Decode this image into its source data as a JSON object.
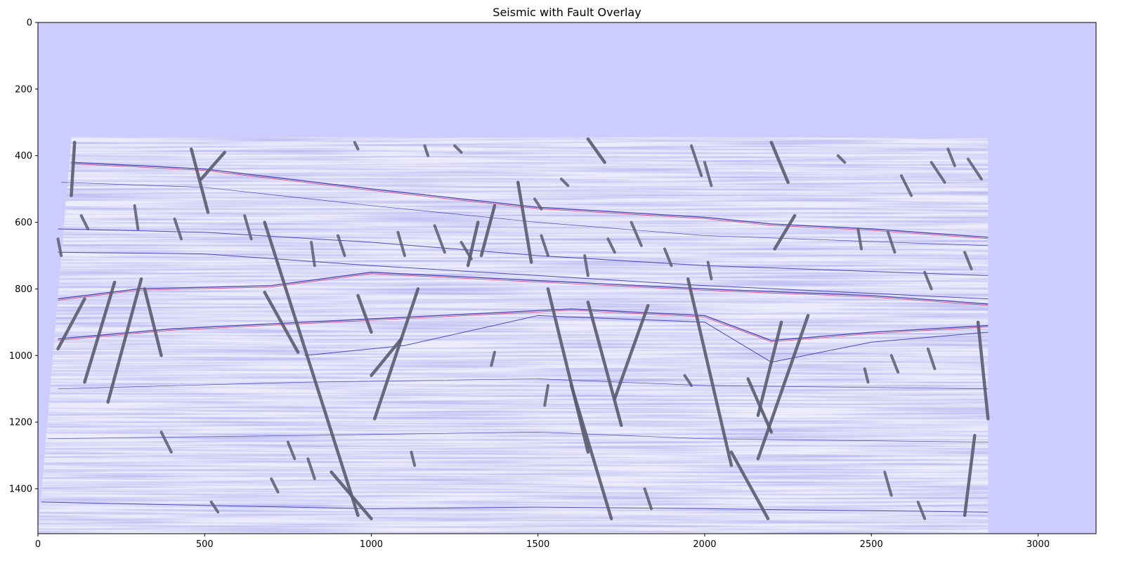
{
  "chart_data": {
    "type": "heatmap",
    "title": "Seismic with Fault Overlay",
    "xlabel": "",
    "ylabel": "",
    "xlim": [
      0,
      3174
    ],
    "ylim": [
      1535,
      0
    ],
    "y_inverted": true,
    "grid": false,
    "legend": "none",
    "x_ticks": [
      "0",
      "500",
      "1000",
      "1500",
      "2000",
      "2500",
      "3000"
    ],
    "y_ticks": [
      "0",
      "200",
      "400",
      "600",
      "800",
      "1000",
      "1200",
      "1400"
    ],
    "x_tick_values": [
      0,
      500,
      1000,
      1500,
      2000,
      2500,
      3000
    ],
    "y_tick_values": [
      0,
      200,
      400,
      600,
      800,
      1000,
      1200,
      1400
    ],
    "colors": {
      "background": "#ccccff",
      "seismic_base": "#ececfb",
      "seismic_negative": "#3a3ab8",
      "seismic_positive": "#ffffff",
      "seismic_strong": "#d4204a",
      "fault": "#5c5c70"
    },
    "data_extent": {
      "x_left_top": [
        100,
        345
      ],
      "x_right_top": [
        2850,
        345
      ],
      "x_left_bottom": [
        0,
        1535
      ],
      "x_right_bottom": [
        2850,
        1535
      ]
    },
    "horizons": [
      {
        "name": "",
        "points": [
          [
            100,
            420
          ],
          [
            500,
            440
          ],
          [
            1000,
            500
          ],
          [
            1500,
            555
          ],
          [
            2000,
            585
          ],
          [
            2200,
            605
          ],
          [
            2500,
            620
          ],
          [
            2850,
            645
          ]
        ],
        "strength": "strong"
      },
      {
        "name": "",
        "points": [
          [
            70,
            480
          ],
          [
            500,
            495
          ],
          [
            1000,
            550
          ],
          [
            1500,
            600
          ],
          [
            2000,
            640
          ],
          [
            2850,
            670
          ]
        ],
        "strength": "weak"
      },
      {
        "name": "",
        "points": [
          [
            60,
            620
          ],
          [
            500,
            630
          ],
          [
            1000,
            660
          ],
          [
            1500,
            700
          ],
          [
            2000,
            730
          ],
          [
            2850,
            760
          ]
        ],
        "strength": "medium"
      },
      {
        "name": "",
        "points": [
          [
            60,
            690
          ],
          [
            500,
            695
          ],
          [
            1000,
            730
          ],
          [
            1500,
            760
          ],
          [
            2000,
            790
          ],
          [
            2850,
            830
          ]
        ],
        "strength": "medium"
      },
      {
        "name": "",
        "points": [
          [
            60,
            830
          ],
          [
            300,
            800
          ],
          [
            700,
            790
          ],
          [
            1000,
            750
          ],
          [
            1500,
            775
          ],
          [
            2000,
            800
          ],
          [
            2500,
            820
          ],
          [
            2850,
            845
          ]
        ],
        "strength": "strong"
      },
      {
        "name": "",
        "points": [
          [
            60,
            950
          ],
          [
            400,
            920
          ],
          [
            800,
            900
          ],
          [
            1200,
            880
          ],
          [
            1600,
            860
          ],
          [
            2000,
            880
          ],
          [
            2200,
            955
          ],
          [
            2500,
            930
          ],
          [
            2850,
            910
          ]
        ],
        "strength": "strong"
      },
      {
        "name": "",
        "points": [
          [
            800,
            1000
          ],
          [
            1100,
            970
          ],
          [
            1500,
            880
          ],
          [
            2000,
            900
          ],
          [
            2200,
            1020
          ],
          [
            2500,
            960
          ],
          [
            2850,
            930
          ]
        ],
        "strength": "medium"
      },
      {
        "name": "",
        "points": [
          [
            60,
            1100
          ],
          [
            800,
            1080
          ],
          [
            1500,
            1070
          ],
          [
            2000,
            1090
          ],
          [
            2850,
            1100
          ]
        ],
        "strength": "weak"
      },
      {
        "name": "",
        "points": [
          [
            30,
            1250
          ],
          [
            800,
            1240
          ],
          [
            1500,
            1230
          ],
          [
            2000,
            1250
          ],
          [
            2850,
            1260
          ]
        ],
        "strength": "weak"
      },
      {
        "name": "",
        "points": [
          [
            10,
            1440
          ],
          [
            500,
            1450
          ],
          [
            1000,
            1460
          ],
          [
            1500,
            1455
          ],
          [
            2000,
            1460
          ],
          [
            2850,
            1470
          ]
        ],
        "strength": "medium"
      }
    ],
    "faults_long": [
      [
        [
          110,
          360
        ],
        [
          100,
          520
        ]
      ],
      [
        [
          140,
          830
        ],
        [
          60,
          980
        ]
      ],
      [
        [
          230,
          780
        ],
        [
          140,
          1080
        ]
      ],
      [
        [
          310,
          770
        ],
        [
          210,
          1140
        ]
      ],
      [
        [
          320,
          800
        ],
        [
          370,
          1000
        ]
      ],
      [
        [
          460,
          380
        ],
        [
          510,
          570
        ]
      ],
      [
        [
          560,
          390
        ],
        [
          490,
          470
        ]
      ],
      [
        [
          680,
          600
        ],
        [
          960,
          1480
        ]
      ],
      [
        [
          680,
          810
        ],
        [
          780,
          990
        ]
      ],
      [
        [
          880,
          1350
        ],
        [
          1000,
          1490
        ]
      ],
      [
        [
          1140,
          800
        ],
        [
          1010,
          1190
        ]
      ],
      [
        [
          960,
          820
        ],
        [
          1000,
          930
        ]
      ],
      [
        [
          1370,
          550
        ],
        [
          1330,
          700
        ]
      ],
      [
        [
          1320,
          600
        ],
        [
          1290,
          730
        ]
      ],
      [
        [
          1530,
          800
        ],
        [
          1650,
          1290
        ]
      ],
      [
        [
          1650,
          840
        ],
        [
          1750,
          1210
        ]
      ],
      [
        [
          1830,
          850
        ],
        [
          1730,
          1130
        ]
      ],
      [
        [
          1600,
          1090
        ],
        [
          1720,
          1490
        ]
      ],
      [
        [
          1950,
          770
        ],
        [
          2080,
          1330
        ]
      ],
      [
        [
          2080,
          1290
        ],
        [
          2190,
          1490
        ]
      ],
      [
        [
          2310,
          880
        ],
        [
          2160,
          1310
        ]
      ],
      [
        [
          2230,
          900
        ],
        [
          2160,
          1180
        ]
      ],
      [
        [
          2130,
          1070
        ],
        [
          2200,
          1230
        ]
      ],
      [
        [
          1090,
          950
        ],
        [
          1000,
          1060
        ]
      ],
      [
        [
          2270,
          580
        ],
        [
          2210,
          680
        ]
      ],
      [
        [
          2820,
          900
        ],
        [
          2850,
          1190
        ]
      ],
      [
        [
          2810,
          1240
        ],
        [
          2780,
          1480
        ]
      ],
      [
        [
          1440,
          480
        ],
        [
          1480,
          720
        ]
      ],
      [
        [
          1650,
          350
        ],
        [
          1700,
          420
        ]
      ],
      [
        [
          2200,
          360
        ],
        [
          2250,
          480
        ]
      ]
    ],
    "faults_short": [
      [
        [
          130,
          580
        ],
        [
          150,
          620
        ]
      ],
      [
        [
          290,
          550
        ],
        [
          300,
          620
        ]
      ],
      [
        [
          410,
          590
        ],
        [
          430,
          650
        ]
      ],
      [
        [
          620,
          580
        ],
        [
          640,
          650
        ]
      ],
      [
        [
          820,
          660
        ],
        [
          830,
          730
        ]
      ],
      [
        [
          900,
          640
        ],
        [
          920,
          700
        ]
      ],
      [
        [
          1080,
          630
        ],
        [
          1100,
          700
        ]
      ],
      [
        [
          1190,
          610
        ],
        [
          1220,
          690
        ]
      ],
      [
        [
          1270,
          660
        ],
        [
          1300,
          710
        ]
      ],
      [
        [
          1510,
          640
        ],
        [
          1530,
          700
        ]
      ],
      [
        [
          1640,
          700
        ],
        [
          1650,
          760
        ]
      ],
      [
        [
          1710,
          650
        ],
        [
          1730,
          690
        ]
      ],
      [
        [
          1780,
          600
        ],
        [
          1810,
          670
        ]
      ],
      [
        [
          1880,
          680
        ],
        [
          1900,
          730
        ]
      ],
      [
        [
          2010,
          720
        ],
        [
          2020,
          770
        ]
      ],
      [
        [
          2460,
          620
        ],
        [
          2470,
          680
        ]
      ],
      [
        [
          2550,
          630
        ],
        [
          2570,
          690
        ]
      ],
      [
        [
          2660,
          750
        ],
        [
          2680,
          800
        ]
      ],
      [
        [
          2780,
          690
        ],
        [
          2800,
          740
        ]
      ],
      [
        [
          2560,
          1000
        ],
        [
          2580,
          1050
        ]
      ],
      [
        [
          2670,
          980
        ],
        [
          2690,
          1040
        ]
      ],
      [
        [
          2590,
          460
        ],
        [
          2620,
          520
        ]
      ],
      [
        [
          2680,
          420
        ],
        [
          2720,
          480
        ]
      ],
      [
        [
          2790,
          410
        ],
        [
          2830,
          470
        ]
      ],
      [
        [
          2730,
          380
        ],
        [
          2750,
          430
        ]
      ],
      [
        [
          1530,
          1090
        ],
        [
          1520,
          1150
        ]
      ],
      [
        [
          1370,
          990
        ],
        [
          1360,
          1030
        ]
      ],
      [
        [
          750,
          1260
        ],
        [
          770,
          1310
        ]
      ],
      [
        [
          370,
          1230
        ],
        [
          400,
          1290
        ]
      ],
      [
        [
          1820,
          1400
        ],
        [
          1840,
          1460
        ]
      ],
      [
        [
          2540,
          1350
        ],
        [
          2560,
          1420
        ]
      ],
      [
        [
          2640,
          1440
        ],
        [
          2660,
          1490
        ]
      ],
      [
        [
          1960,
          370
        ],
        [
          1990,
          460
        ]
      ],
      [
        [
          2000,
          420
        ],
        [
          2020,
          490
        ]
      ],
      [
        [
          1490,
          530
        ],
        [
          1510,
          560
        ]
      ],
      [
        [
          1160,
          370
        ],
        [
          1170,
          400
        ]
      ],
      [
        [
          950,
          360
        ],
        [
          960,
          380
        ]
      ],
      [
        [
          1250,
          370
        ],
        [
          1270,
          390
        ]
      ],
      [
        [
          1570,
          470
        ],
        [
          1590,
          490
        ]
      ],
      [
        [
          2400,
          400
        ],
        [
          2420,
          420
        ]
      ],
      [
        [
          60,
          650
        ],
        [
          70,
          700
        ]
      ],
      [
        [
          810,
          1310
        ],
        [
          830,
          1370
        ]
      ],
      [
        [
          700,
          1370
        ],
        [
          720,
          1410
        ]
      ],
      [
        [
          520,
          1440
        ],
        [
          540,
          1470
        ]
      ],
      [
        [
          1120,
          1290
        ],
        [
          1130,
          1330
        ]
      ],
      [
        [
          1940,
          1060
        ],
        [
          1960,
          1090
        ]
      ],
      [
        [
          2480,
          1040
        ],
        [
          2490,
          1080
        ]
      ]
    ]
  }
}
